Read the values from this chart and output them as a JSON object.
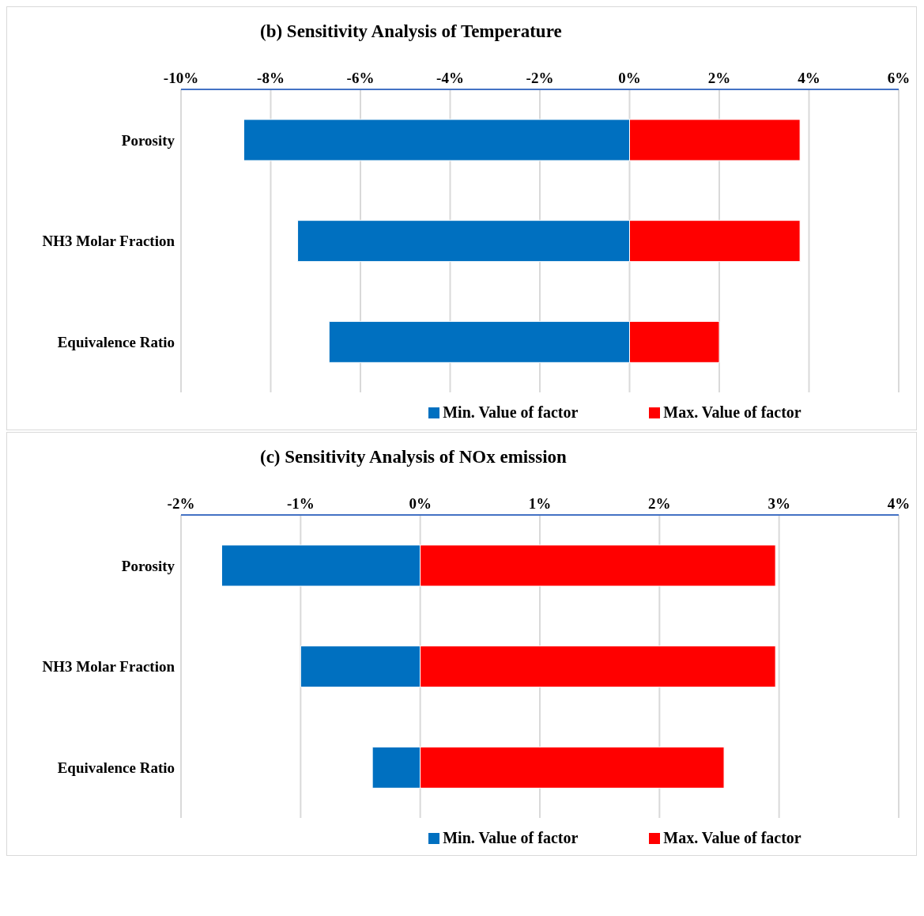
{
  "chart_data": [
    {
      "type": "bar",
      "orientation": "horizontal",
      "stacked": true,
      "title": "(b) Sensitivity Analysis of Temperature",
      "categories": [
        "Porosity",
        "NH3 Molar Fraction",
        "Equivalence Ratio"
      ],
      "series": [
        {
          "name": "Min. Value of factor",
          "color": "#0070c0",
          "values": [
            -8.6,
            -7.4,
            -6.7
          ]
        },
        {
          "name": "Max. Value of factor",
          "color": "#ff0000",
          "values": [
            3.8,
            3.8,
            2.0
          ]
        }
      ],
      "xlim": [
        -10,
        6
      ],
      "xticks": [
        {
          "value": -10,
          "label": "-10%"
        },
        {
          "value": -8,
          "label": "-8%"
        },
        {
          "value": -6,
          "label": "-6%"
        },
        {
          "value": -4,
          "label": "-4%"
        },
        {
          "value": -2,
          "label": "-2%"
        },
        {
          "value": 0,
          "label": "0%"
        },
        {
          "value": 2,
          "label": "2%"
        },
        {
          "value": 4,
          "label": "4%"
        },
        {
          "value": 6,
          "label": "6%"
        }
      ],
      "grid": "x",
      "legend": "bottom"
    },
    {
      "type": "bar",
      "orientation": "horizontal",
      "stacked": true,
      "title": "(c) Sensitivity Analysis of NOx emission",
      "categories": [
        "Porosity",
        "NH3 Molar Fraction",
        "Equivalence Ratio"
      ],
      "series": [
        {
          "name": "Min. Value of factor",
          "color": "#0070c0",
          "values": [
            -1.66,
            -1.0,
            -0.4
          ]
        },
        {
          "name": "Max. Value of factor",
          "color": "#ff0000",
          "values": [
            2.97,
            2.97,
            2.54
          ]
        }
      ],
      "xlim": [
        -2,
        4
      ],
      "xticks": [
        {
          "value": -2,
          "label": "-2%"
        },
        {
          "value": -1,
          "label": "-1%"
        },
        {
          "value": 0,
          "label": "0%"
        },
        {
          "value": 1,
          "label": "1%"
        },
        {
          "value": 2,
          "label": "2%"
        },
        {
          "value": 3,
          "label": "3%"
        },
        {
          "value": 4,
          "label": "4%"
        }
      ],
      "grid": "x",
      "legend": "bottom"
    }
  ]
}
